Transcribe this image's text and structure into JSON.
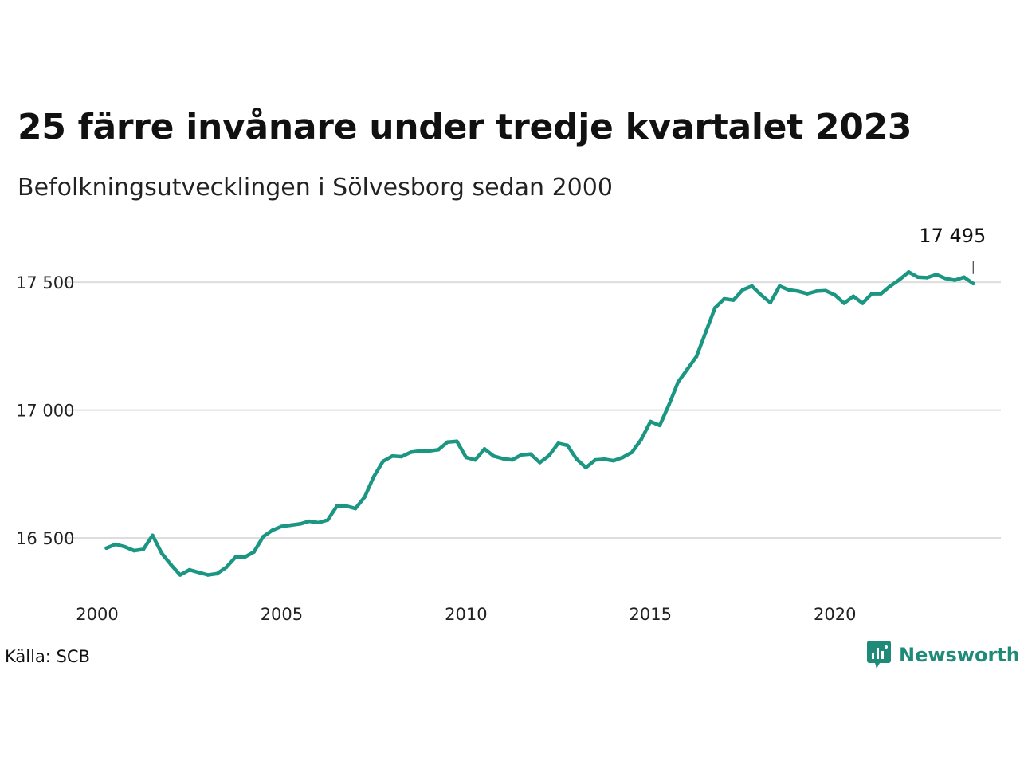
{
  "title": "25 färre invånare under tredje kvartalet 2023",
  "subtitle": "Befolkningsutvecklingen i Sölvesborg sedan 2000",
  "source": "Källa: SCB",
  "brand": "Newsworthy",
  "colors": {
    "line": "#1a9683",
    "grid": "#dddddd",
    "text": "#111111",
    "brand": "#1f8a78"
  },
  "chart_data": {
    "type": "line",
    "title": "25 färre invånare under tredje kvartalet 2023",
    "subtitle": "Befolkningsutvecklingen i Sölvesborg sedan 2000",
    "xlabel": "",
    "ylabel": "",
    "xlim": [
      2000,
      2024.5
    ],
    "ylim": [
      16260,
      17700
    ],
    "grid": true,
    "x_ticks": [
      2000,
      2005,
      2010,
      2015,
      2020
    ],
    "x_tick_labels": [
      "2000",
      "2005",
      "2010",
      "2015",
      "2020"
    ],
    "y_ticks": [
      16500,
      17000,
      17500
    ],
    "y_tick_labels": [
      "16 500",
      "17 000",
      "17 500"
    ],
    "last_value_label": "17 495",
    "series": [
      {
        "x": [
          2000.25,
          2000.5,
          2000.75,
          2001.0,
          2001.25,
          2001.5,
          2001.75,
          2002.0,
          2002.25,
          2002.5,
          2002.75,
          2003.0,
          2003.25,
          2003.5,
          2003.75,
          2004.0,
          2004.25,
          2004.5,
          2004.75,
          2005.0,
          2005.25,
          2005.5,
          2005.75,
          2006.0,
          2006.25,
          2006.5,
          2006.75,
          2007.0,
          2007.25,
          2007.5,
          2007.75,
          2008.0,
          2008.25,
          2008.5,
          2008.75,
          2009.0,
          2009.25,
          2009.5,
          2009.75,
          2010.0,
          2010.25,
          2010.5,
          2010.75,
          2011.0,
          2011.25,
          2011.5,
          2011.75,
          2012.0,
          2012.25,
          2012.5,
          2012.75,
          2013.0,
          2013.25,
          2013.5,
          2013.75,
          2014.0,
          2014.25,
          2014.5,
          2014.75,
          2015.0,
          2015.25,
          2015.5,
          2015.75,
          2016.0,
          2016.25,
          2016.5,
          2016.75,
          2017.0,
          2017.25,
          2017.5,
          2017.75,
          2018.0,
          2018.25,
          2018.5,
          2018.75,
          2019.0,
          2019.25,
          2019.5,
          2019.75,
          2020.0,
          2020.25,
          2020.5,
          2020.75,
          2021.0,
          2021.25,
          2021.5,
          2021.75,
          2022.0,
          2022.25,
          2022.5,
          2022.75,
          2023.0,
          2023.25,
          2023.5,
          2023.75
        ],
        "y": [
          16460,
          16475,
          16465,
          16450,
          16455,
          16510,
          16440,
          16395,
          16355,
          16375,
          16365,
          16355,
          16360,
          16385,
          16425,
          16425,
          16445,
          16505,
          16530,
          16545,
          16550,
          16555,
          16565,
          16560,
          16570,
          16625,
          16625,
          16615,
          16660,
          16740,
          16800,
          16820,
          16818,
          16835,
          16840,
          16840,
          16845,
          16875,
          16878,
          16815,
          16805,
          16848,
          16820,
          16810,
          16805,
          16825,
          16828,
          16795,
          16822,
          16870,
          16862,
          16808,
          16775,
          16805,
          16808,
          16802,
          16815,
          16835,
          16885,
          16955,
          16940,
          17020,
          17110,
          17160,
          17210,
          17305,
          17400,
          17435,
          17430,
          17470,
          17485,
          17450,
          17420,
          17485,
          17470,
          17465,
          17455,
          17465,
          17467,
          17450,
          17418,
          17445,
          17418,
          17455,
          17455,
          17485,
          17510,
          17540,
          17520,
          17518,
          17530,
          17515,
          17508,
          17520,
          17495
        ]
      }
    ]
  }
}
